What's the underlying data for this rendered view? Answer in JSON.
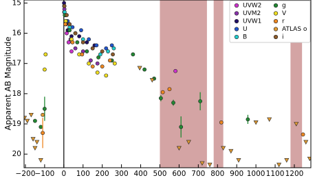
{
  "chart_data": {
    "type": "scatter",
    "ylabel": "Apparent AB Magnitude",
    "xlim": [
      -207,
      1286
    ],
    "ylim": [
      20.45,
      14.9
    ],
    "xticks": [
      {
        "value": -200,
        "label": "−200"
      },
      {
        "value": -100,
        "label": "−100"
      },
      0,
      100,
      200,
      300,
      400,
      500,
      600,
      700,
      800,
      900,
      1000,
      1100,
      1200
    ],
    "yticks": [
      15,
      16,
      17,
      18,
      19,
      20
    ],
    "vline": 0,
    "shaded_regions": [
      [
        500,
        745
      ],
      [
        780,
        830
      ],
      [
        1180,
        1240
      ]
    ],
    "shade_color": "#d4a4a4",
    "legend": "upper right",
    "series": [
      {
        "name": "UVW2",
        "color": "#cc33cc",
        "x": [
          2,
          8,
          15,
          25,
          40,
          581
        ],
        "values": [
          15.3,
          15.7,
          16.0,
          16.3,
          16.6,
          17.25
        ]
      },
      {
        "name": "UVM2",
        "color": "#8833aa",
        "x": [
          3,
          10,
          20,
          35,
          60,
          100,
          140,
          175
        ],
        "values": [
          15.2,
          15.6,
          15.9,
          16.2,
          16.5,
          16.6,
          16.9,
          17.0
        ]
      },
      {
        "name": "UVW1",
        "color": "#221166",
        "x": [
          1,
          6,
          12,
          22,
          40,
          80,
          120,
          160
        ],
        "values": [
          15.0,
          15.4,
          15.7,
          15.9,
          16.1,
          16.1,
          16.3,
          16.4
        ]
      },
      {
        "name": "U",
        "color": "#2255cc",
        "x": [
          2,
          9,
          20,
          45,
          90,
          130,
          170,
          220,
          250
        ],
        "values": [
          15.1,
          15.4,
          15.6,
          15.8,
          15.9,
          16.2,
          16.4,
          16.5,
          16.4
        ]
      },
      {
        "name": "B",
        "color": "#22cccc",
        "x": [
          4,
          12,
          30,
          60,
          100,
          150,
          190,
          230,
          260
        ],
        "values": [
          15.3,
          15.6,
          15.8,
          16.0,
          16.2,
          16.5,
          16.7,
          16.6,
          16.5
        ]
      },
      {
        "name": "g",
        "color": "#228833",
        "x": [
          -150,
          -120,
          -100,
          5,
          30,
          70,
          120,
          180,
          250,
          360,
          420,
          470,
          505,
          570,
          610,
          710,
          958
        ],
        "values": [
          18.9,
          19.1,
          18.5,
          15.4,
          15.9,
          16.3,
          16.6,
          16.8,
          16.9,
          16.7,
          17.2,
          17.5,
          18.15,
          18.3,
          19.1,
          18.25,
          18.85
        ],
        "errors": [
          null,
          null,
          0.4,
          null,
          null,
          null,
          null,
          null,
          null,
          null,
          null,
          null,
          0.1,
          0.1,
          0.35,
          0.3,
          0.15
        ]
      },
      {
        "name": "V",
        "color": "#eedd22",
        "x": [
          -95,
          -100,
          10,
          40,
          80,
          130,
          175,
          220,
          265
        ],
        "values": [
          16.7,
          17.2,
          15.6,
          16.2,
          16.7,
          17.0,
          17.3,
          17.4,
          17.0
        ]
      },
      {
        "name": "r",
        "color": "#ee8822",
        "x": [
          -110,
          8,
          45,
          95,
          150,
          200,
          240,
          515,
          550,
          820,
          1245
        ],
        "values": [
          19.3,
          15.7,
          16.3,
          16.7,
          17.1,
          17.1,
          16.9,
          17.95,
          17.85,
          18.95,
          19.35
        ],
        "errors": [
          0.5,
          null,
          null,
          null,
          null,
          null,
          null,
          null,
          null,
          null,
          null
        ]
      },
      {
        "name": "ATLAS o",
        "color": "#dd9933",
        "x": [
          -110
        ],
        "values": [
          18.7
        ],
        "limit_x": [
          -205,
          -190,
          -170,
          -160,
          -150,
          -140,
          -120,
          395,
          460,
          600,
          650,
          720,
          760,
          830,
          870,
          910,
          1000,
          1070,
          1120,
          1160,
          1210,
          1260,
          1280
        ],
        "limit_values": [
          18.8,
          18.9,
          18.7,
          19.5,
          19.8,
          19.6,
          20.2,
          17.15,
          17.55,
          19.8,
          19.6,
          20.3,
          20.35,
          19.8,
          19.9,
          20.2,
          18.95,
          18.85,
          20.35,
          20.2,
          19.0,
          19.6,
          20.15
        ]
      },
      {
        "name": "i",
        "color": "#8b5a2b",
        "x": [
          3,
          15,
          30,
          60,
          100,
          150,
          200,
          255
        ],
        "values": [
          15.1,
          15.4,
          15.7,
          16.0,
          16.3,
          16.5,
          16.6,
          16.7
        ]
      }
    ]
  }
}
